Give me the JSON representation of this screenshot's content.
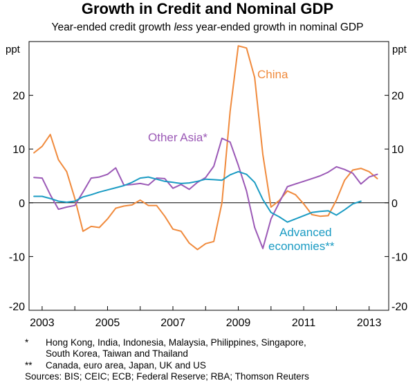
{
  "title": "Growth in Credit and Nominal GDP",
  "subtitle": {
    "part1": "Year-ended credit growth ",
    "italic": "less",
    "part2": " year-ended growth in nominal GDP"
  },
  "colors": {
    "china": "#f08a3c",
    "other_asia": "#9b59b6",
    "advanced": "#1a9bc3",
    "axis": "#000000"
  },
  "chart_data": {
    "type": "line",
    "title": "Growth in Credit and Nominal GDP",
    "ylabel_left": "ppt",
    "ylabel_right": "ppt",
    "ylim": [
      -20,
      30
    ],
    "yticks": [
      -20,
      -10,
      0,
      10,
      20
    ],
    "xlim": [
      2002.6,
      2013.6
    ],
    "xticks": [
      2003,
      2005,
      2007,
      2009,
      2011,
      2013
    ],
    "xtick_labels": [
      "2003",
      "2005",
      "2007",
      "2009",
      "2011",
      "2013"
    ],
    "series": [
      {
        "name": "China",
        "label": "China",
        "color": "#f08a3c",
        "x": [
          2002.75,
          2003.0,
          2003.25,
          2003.5,
          2003.75,
          2004.0,
          2004.25,
          2004.5,
          2004.75,
          2005.0,
          2005.25,
          2005.5,
          2005.75,
          2006.0,
          2006.25,
          2006.5,
          2006.75,
          2007.0,
          2007.25,
          2007.5,
          2007.75,
          2008.0,
          2008.25,
          2008.5,
          2008.75,
          2009.0,
          2009.25,
          2009.5,
          2009.75,
          2010.0,
          2010.25,
          2010.5,
          2010.75,
          2011.0,
          2011.25,
          2011.5,
          2011.75,
          2012.0,
          2012.25,
          2012.5,
          2012.75,
          2013.0,
          2013.25
        ],
        "y": [
          9.3,
          10.5,
          12.7,
          8.0,
          5.8,
          0.8,
          -5.3,
          -4.4,
          -4.6,
          -3.0,
          -1.0,
          -0.6,
          -0.4,
          0.5,
          -0.5,
          -0.5,
          -2.5,
          -4.9,
          -5.3,
          -7.5,
          -8.7,
          -7.6,
          -7.2,
          0.0,
          17.0,
          29.2,
          28.8,
          23.3,
          9.0,
          -0.8,
          0.4,
          2.2,
          1.5,
          -0.2,
          -2.2,
          -2.5,
          -2.4,
          0.5,
          4.2,
          6.1,
          6.4,
          5.8,
          4.5
        ]
      },
      {
        "name": "Other Asia*",
        "label": "Other Asia*",
        "color": "#9b59b6",
        "x": [
          2002.75,
          2003.0,
          2003.25,
          2003.5,
          2003.75,
          2004.0,
          2004.25,
          2004.5,
          2004.75,
          2005.0,
          2005.25,
          2005.5,
          2005.75,
          2006.0,
          2006.25,
          2006.5,
          2006.75,
          2007.0,
          2007.25,
          2007.5,
          2007.75,
          2008.0,
          2008.25,
          2008.5,
          2008.75,
          2009.0,
          2009.25,
          2009.5,
          2009.75,
          2010.0,
          2010.25,
          2010.5,
          2010.75,
          2011.0,
          2011.25,
          2011.5,
          2011.75,
          2012.0,
          2012.25,
          2012.5,
          2012.75,
          2013.0,
          2013.25
        ],
        "y": [
          4.7,
          4.6,
          1.5,
          -1.2,
          -0.8,
          -0.5,
          2.0,
          4.6,
          4.8,
          5.3,
          6.5,
          3.3,
          3.4,
          3.6,
          3.3,
          4.6,
          4.5,
          2.7,
          3.4,
          2.5,
          3.8,
          4.7,
          6.8,
          12.0,
          11.3,
          7.0,
          2.2,
          -4.6,
          -8.5,
          -3.0,
          0.0,
          3.0,
          3.5,
          4.0,
          4.5,
          5.0,
          5.7,
          6.7,
          6.2,
          5.5,
          3.5,
          4.8,
          5.3
        ]
      },
      {
        "name": "Advanced economies**",
        "label_line1": "Advanced",
        "label_line2": "economies**",
        "color": "#1a9bc3",
        "x": [
          2002.75,
          2003.0,
          2003.25,
          2003.5,
          2003.75,
          2004.0,
          2004.25,
          2004.5,
          2004.75,
          2005.0,
          2005.25,
          2005.5,
          2005.75,
          2006.0,
          2006.25,
          2006.5,
          2006.75,
          2007.0,
          2007.25,
          2007.5,
          2007.75,
          2008.0,
          2008.25,
          2008.5,
          2008.75,
          2009.0,
          2009.25,
          2009.5,
          2009.75,
          2010.0,
          2010.25,
          2010.5,
          2010.75,
          2011.0,
          2011.25,
          2011.5,
          2011.75,
          2012.0,
          2012.25,
          2012.5,
          2012.75
        ],
        "y": [
          1.2,
          1.2,
          0.8,
          0.3,
          0.1,
          0.3,
          1.1,
          1.5,
          2.0,
          2.4,
          2.8,
          3.2,
          3.8,
          4.6,
          4.8,
          4.4,
          4.0,
          3.8,
          3.6,
          3.7,
          4.0,
          4.4,
          4.3,
          4.2,
          5.2,
          5.8,
          5.3,
          3.8,
          0.6,
          -1.8,
          -2.6,
          -3.6,
          -3.0,
          -2.4,
          -1.8,
          -1.6,
          -1.5,
          -2.3,
          -1.3,
          -0.2,
          0.3
        ]
      }
    ]
  },
  "footnotes": [
    {
      "mark": "*",
      "lines": [
        "Hong Kong, India, Indonesia, Malaysia, Philippines, Singapore,",
        "South Korea, Taiwan and Thailand"
      ]
    },
    {
      "mark": "**",
      "lines": [
        "Canada, euro area, Japan, UK and US"
      ]
    }
  ],
  "sources": "Sources: BIS; CEIC; ECB; Federal Reserve; RBA; Thomson Reuters"
}
